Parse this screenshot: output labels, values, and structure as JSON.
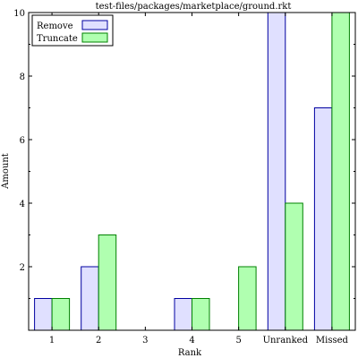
{
  "chart_data": {
    "type": "bar",
    "title": "test-files/packages/marketplace/ground.rkt",
    "xlabel": "Rank",
    "ylabel": "Amount",
    "categories": [
      "1",
      "2",
      "3",
      "4",
      "5",
      "Unranked",
      "Missed"
    ],
    "series": [
      {
        "name": "Remove",
        "values": [
          1,
          2,
          0,
          1,
          0,
          10,
          7
        ],
        "fill": "#e0e0ff",
        "stroke": "#0000a0"
      },
      {
        "name": "Truncate",
        "values": [
          1,
          3,
          0,
          1,
          2,
          4,
          10
        ],
        "fill": "#b0ffb0",
        "stroke": "#008000"
      }
    ],
    "ylim": [
      0,
      10
    ],
    "yticks": [
      2,
      4,
      6,
      8,
      10
    ],
    "grid": false,
    "legend_position": "top-left"
  }
}
